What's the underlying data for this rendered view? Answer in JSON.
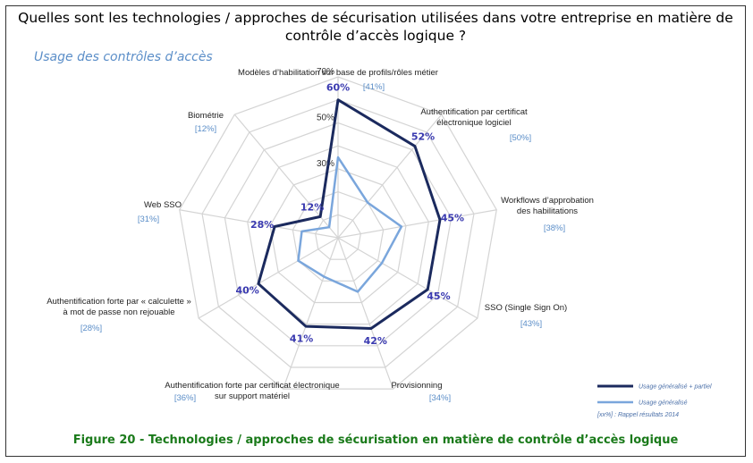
{
  "question": "Quelles sont les technologies / approches de sécurisation utilisées dans votre entreprise en matière de contrôle d’accès logique ?",
  "subtitle": "Usage des contrôles d’accès",
  "caption": "Figure 20 - Technologies / approches de sécurisation en matière de contrôle d’accès logique",
  "colors": {
    "series_partial": "#1b2a5e",
    "series_general": "#7aa6dc",
    "grid": "#d4d4d4",
    "label_value": "#3a3ab0",
    "label_previous": "#5b8ec8",
    "caption": "#1a7a1a"
  },
  "chart_data": {
    "type": "radar",
    "categories": [
      [
        "Modèles d’habilitation sur base de profils/rôles métier"
      ],
      [
        "Authentification par certificat",
        "électronique logiciel"
      ],
      [
        "Workflows d’approbation",
        "des habilitations"
      ],
      [
        "SSO (Single Sign On)"
      ],
      [
        "Provisionning"
      ],
      [
        "Authentification forte par certificat électronique",
        "sur support matériel"
      ],
      [
        "Authentification forte par « calculette »",
        "à mot de passe non rejouable"
      ],
      [
        "Web SSO"
      ],
      [
        "Biométrie"
      ]
    ],
    "previous_labels": [
      "[41%]",
      "[50%]",
      "[38%]",
      "[43%]",
      "[34%]",
      "[36%]",
      "[28%]",
      "[31%]",
      "[12%]"
    ],
    "value_labels": [
      "60%",
      "52%",
      "45%",
      "45%",
      "42%",
      "41%",
      "40%",
      "28%",
      "12%"
    ],
    "series": [
      {
        "name": "Usage généralisé + partiel",
        "values": [
          60,
          52,
          45,
          45,
          42,
          41,
          40,
          28,
          12
        ]
      },
      {
        "name": "Usage généralisé",
        "values": [
          35,
          20,
          28,
          22,
          25,
          18,
          20,
          16,
          6
        ]
      }
    ],
    "rmax": 70,
    "ticks": [
      "70%",
      "50%",
      "30%"
    ],
    "tick_values": [
      70,
      50,
      30
    ],
    "grid_values": [
      10,
      20,
      30,
      40,
      50,
      60,
      70
    ],
    "legend_note": "[xx%] : Rappel résultats 2014",
    "legend_position": "bottom-right",
    "grid": true
  }
}
